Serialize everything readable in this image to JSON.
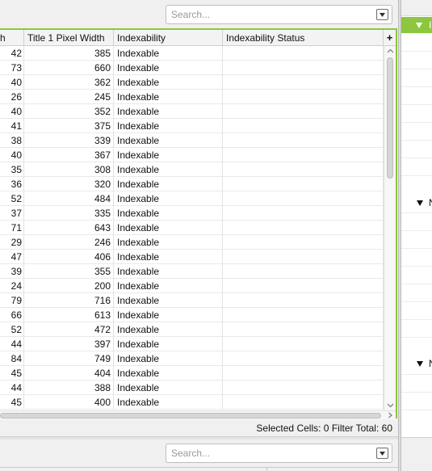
{
  "top_search": {
    "placeholder": "Search..."
  },
  "table": {
    "columns": [
      "h",
      "Title 1 Pixel Width",
      "Indexability",
      "Indexability Status"
    ],
    "add_column_label": "+",
    "rows": [
      [
        "42",
        "385",
        "Indexable",
        ""
      ],
      [
        "73",
        "660",
        "Indexable",
        ""
      ],
      [
        "40",
        "362",
        "Indexable",
        ""
      ],
      [
        "26",
        "245",
        "Indexable",
        ""
      ],
      [
        "40",
        "352",
        "Indexable",
        ""
      ],
      [
        "41",
        "375",
        "Indexable",
        ""
      ],
      [
        "38",
        "339",
        "Indexable",
        ""
      ],
      [
        "40",
        "367",
        "Indexable",
        ""
      ],
      [
        "35",
        "308",
        "Indexable",
        ""
      ],
      [
        "36",
        "320",
        "Indexable",
        ""
      ],
      [
        "52",
        "484",
        "Indexable",
        ""
      ],
      [
        "37",
        "335",
        "Indexable",
        ""
      ],
      [
        "71",
        "643",
        "Indexable",
        ""
      ],
      [
        "29",
        "246",
        "Indexable",
        ""
      ],
      [
        "47",
        "406",
        "Indexable",
        ""
      ],
      [
        "39",
        "355",
        "Indexable",
        ""
      ],
      [
        "24",
        "200",
        "Indexable",
        ""
      ],
      [
        "79",
        "716",
        "Indexable",
        ""
      ],
      [
        "66",
        "613",
        "Indexable",
        ""
      ],
      [
        "52",
        "472",
        "Indexable",
        ""
      ],
      [
        "44",
        "397",
        "Indexable",
        ""
      ],
      [
        "84",
        "749",
        "Indexable",
        ""
      ],
      [
        "45",
        "404",
        "Indexable",
        ""
      ],
      [
        "44",
        "388",
        "Indexable",
        ""
      ],
      [
        "45",
        "400",
        "Indexable",
        ""
      ]
    ]
  },
  "status": {
    "selected_cells_label": "Selected Cells:",
    "selected_cells_value": "0",
    "filter_total_label": "Filter Total:",
    "filter_total_value": "60"
  },
  "bottom_search": {
    "placeholder": "Search..."
  },
  "right_panel": {
    "header_label": "I",
    "section_labels": [
      "N",
      "N"
    ]
  },
  "icons": {
    "dropdown": "chevron-down-icon",
    "expand": "triangle-down-icon",
    "scroll_up": "chevron-up-icon",
    "scroll_down": "chevron-down-icon",
    "scroll_right": "chevron-right-icon"
  },
  "colors": {
    "accent": "#8dc63f",
    "header_bg": "#f3f3f3",
    "border": "#cfcfcf"
  }
}
